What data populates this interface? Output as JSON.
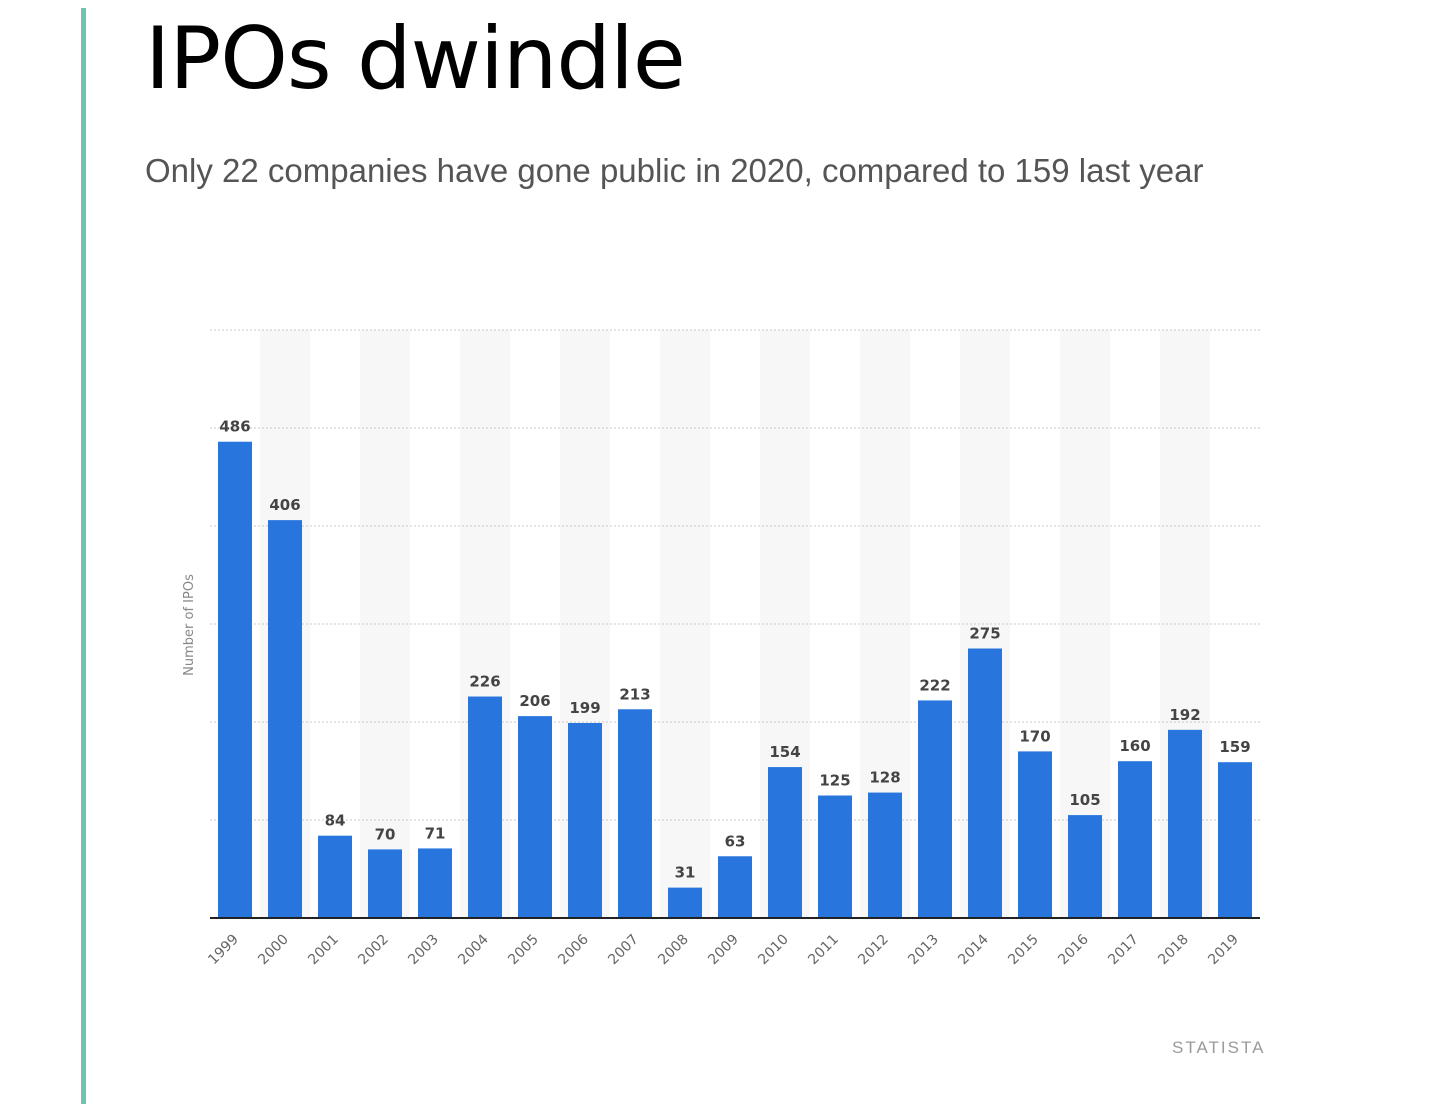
{
  "header": {
    "title": "IPOs dwindle",
    "subtitle": "Only 22 companies have gone public in 2020, compared to 159 last year"
  },
  "source": "STATISTA",
  "colors": {
    "accent": "#6cc5b0",
    "bar": "#2876dd",
    "axis": "#222222",
    "grid": "#c8c8c8",
    "band": "#f7f7f7",
    "label": "#444444",
    "tick": "#666666"
  },
  "chart_data": {
    "type": "bar",
    "categories": [
      "1999",
      "2000",
      "2001",
      "2002",
      "2003",
      "2004",
      "2005",
      "2006",
      "2007",
      "2008",
      "2009",
      "2010",
      "2011",
      "2012",
      "2013",
      "2014",
      "2015",
      "2016",
      "2017",
      "2018",
      "2019"
    ],
    "series": [
      {
        "values": [
          486,
          406,
          84,
          70,
          71,
          226,
          206,
          199,
          213,
          31,
          63,
          154,
          125,
          128,
          222,
          275,
          170,
          105,
          160,
          192,
          159
        ]
      }
    ],
    "ylabel": "Number of IPOs",
    "xlabel": "",
    "ylim": [
      0,
      600
    ],
    "gridlines": [
      100,
      200,
      300,
      400,
      500,
      600
    ],
    "y_tick_labels_shown": false,
    "data_labels": true,
    "legend": "none"
  }
}
